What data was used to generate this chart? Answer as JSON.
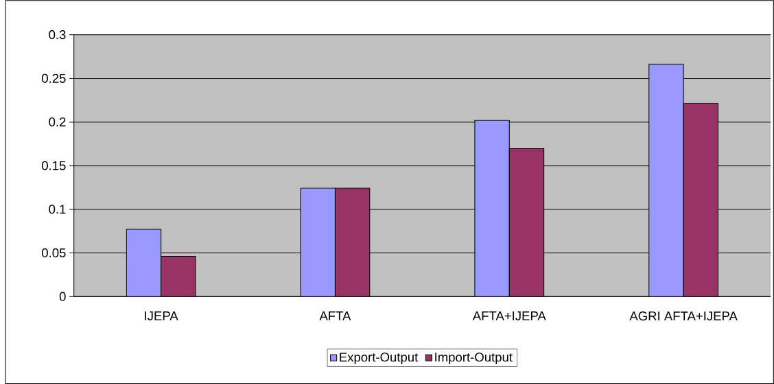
{
  "chart_data": {
    "type": "bar",
    "categories": [
      "IJEPA",
      "AFTA",
      "AFTA+IJEPA",
      "AGRI AFTA+IJEPA"
    ],
    "series": [
      {
        "name": "Export-Output",
        "color": "#9999ff",
        "values": [
          0.077,
          0.124,
          0.202,
          0.266
        ]
      },
      {
        "name": "Import-Output",
        "color": "#993366",
        "values": [
          0.046,
          0.124,
          0.17,
          0.221
        ]
      }
    ],
    "ylim": [
      0,
      0.3
    ],
    "yticks": [
      0,
      0.05,
      0.1,
      0.15,
      0.2,
      0.25,
      0.3
    ],
    "grid": "y",
    "legend": "bottom"
  }
}
